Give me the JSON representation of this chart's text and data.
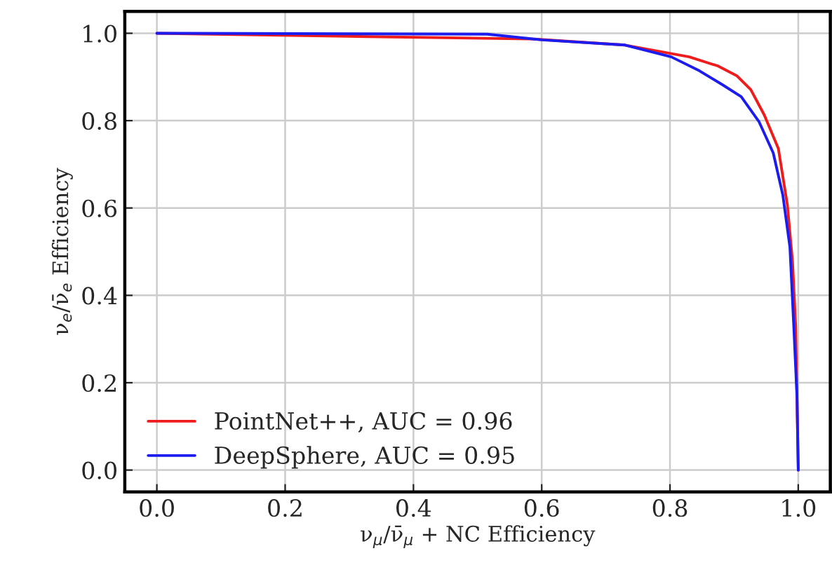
{
  "chart_data": {
    "type": "line",
    "xlabel": "ν$_{μ}$/ν̄$_{μ}$ + NC Efficiency",
    "ylabel": "ν$_{e}$/ν̄$_{e}$ Efficiency",
    "xlim": [
      -0.05,
      1.05
    ],
    "ylim": [
      -0.05,
      1.05
    ],
    "xticks": [
      {
        "value": 0,
        "label": "0.0"
      },
      0.2,
      0.4,
      0.6,
      0.8,
      {
        "value": 1,
        "label": "1.0"
      }
    ],
    "yticks": [
      {
        "value": 0,
        "label": "0.0"
      },
      0.2,
      0.4,
      0.6,
      0.8,
      {
        "value": 1,
        "label": "1.0"
      }
    ],
    "grid": true,
    "legend": "bottom left",
    "line_style": "solid",
    "marker": "none",
    "series": [
      {
        "name": "PointNet++, AUC = 0.96",
        "color": "#ee1c1c",
        "x": [
          0.0,
          0.3,
          0.585,
          0.73,
          0.83,
          0.875,
          0.904,
          0.926,
          0.947,
          0.969,
          0.983,
          0.991,
          0.996,
          1.0
        ],
        "values": [
          1.0,
          0.993,
          0.987,
          0.973,
          0.946,
          0.925,
          0.903,
          0.871,
          0.813,
          0.736,
          0.607,
          0.478,
          0.329,
          0.0
        ]
      },
      {
        "name": "DeepSphere, AUC = 0.95",
        "color": "#1c1cee",
        "x": [
          0.0,
          0.515,
          0.6,
          0.73,
          0.802,
          0.846,
          0.882,
          0.911,
          0.939,
          0.961,
          0.976,
          0.987,
          0.993,
          0.998,
          1.0
        ],
        "values": [
          1.0,
          0.998,
          0.985,
          0.973,
          0.946,
          0.914,
          0.882,
          0.855,
          0.797,
          0.726,
          0.629,
          0.51,
          0.329,
          0.168,
          0.0
        ]
      }
    ]
  }
}
